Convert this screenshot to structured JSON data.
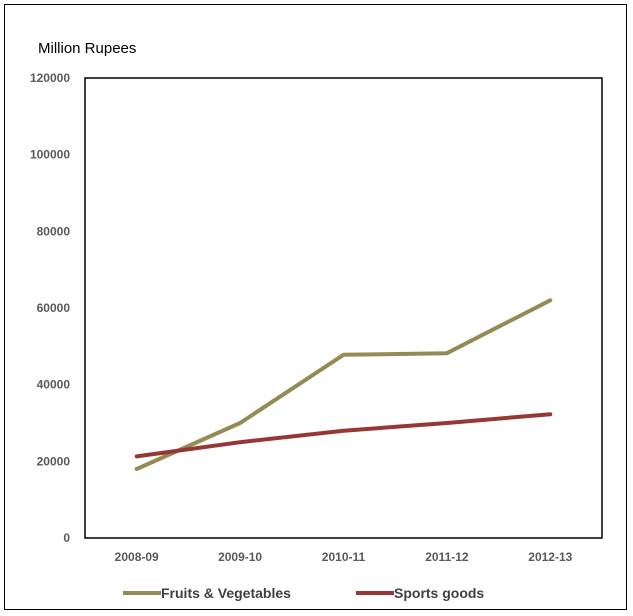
{
  "chart_data": {
    "type": "line",
    "ylabel": "Million Rupees",
    "xlabel": "",
    "title": "",
    "categories": [
      "2008-09",
      "2009-10",
      "2010-11",
      "2011-12",
      "2012-13"
    ],
    "ylim": [
      0,
      120000
    ],
    "yticks": [
      0,
      20000,
      40000,
      60000,
      80000,
      100000,
      120000
    ],
    "grid": false,
    "legend": "bottom",
    "series": [
      {
        "name": "Fruits & Vegetables",
        "color": "#948A54",
        "values": [
          18000,
          30000,
          47800,
          48200,
          62000
        ]
      },
      {
        "name": "Sports goods",
        "color": "#953735",
        "values": [
          21300,
          25000,
          28000,
          30000,
          32300
        ]
      }
    ]
  }
}
